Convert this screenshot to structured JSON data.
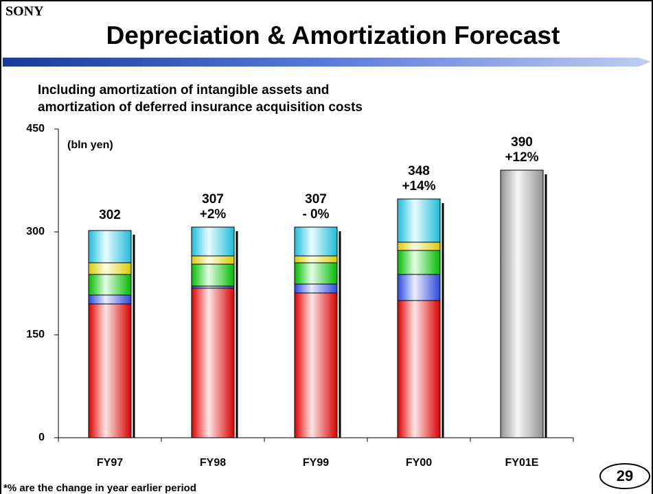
{
  "brand": "SONY",
  "chart_data": {
    "type": "stacked_bar",
    "title": "Depreciation & Amortization Forecast",
    "subtitle": [
      "Including amortization of intangible assets and",
      "amortization of deferred insurance acquisition costs"
    ],
    "unit_label": "(bln yen)",
    "categories": [
      "FY97",
      "FY98",
      "FY99",
      "FY00",
      "FY01E"
    ],
    "series": [
      {
        "color": "#ff0000",
        "values": [
          195,
          218,
          211,
          200,
          null
        ]
      },
      {
        "color": "#3355ff",
        "values": [
          13,
          3,
          13,
          38,
          null
        ]
      },
      {
        "color": "#00dd00",
        "values": [
          30,
          32,
          31,
          35,
          null
        ]
      },
      {
        "color": "#ffee00",
        "values": [
          17,
          12,
          10,
          12,
          null
        ]
      },
      {
        "color": "#22ddff",
        "values": [
          47,
          42,
          42,
          63,
          null
        ]
      },
      {
        "color": "#aaaaaa",
        "values": [
          null,
          null,
          null,
          null,
          390
        ]
      }
    ],
    "totals": [
      302,
      307,
      307,
      348,
      390
    ],
    "change": {
      "values": [
        null,
        2,
        0,
        14,
        12
      ],
      "value_labels": [
        null,
        "+2%",
        "- 0%",
        "+14%",
        "+12%"
      ]
    },
    "ylim": [
      0,
      450
    ],
    "yticks": [
      0,
      150,
      300,
      450
    ],
    "footnote": "*% are the change in year earlier period"
  },
  "page_number": "29"
}
